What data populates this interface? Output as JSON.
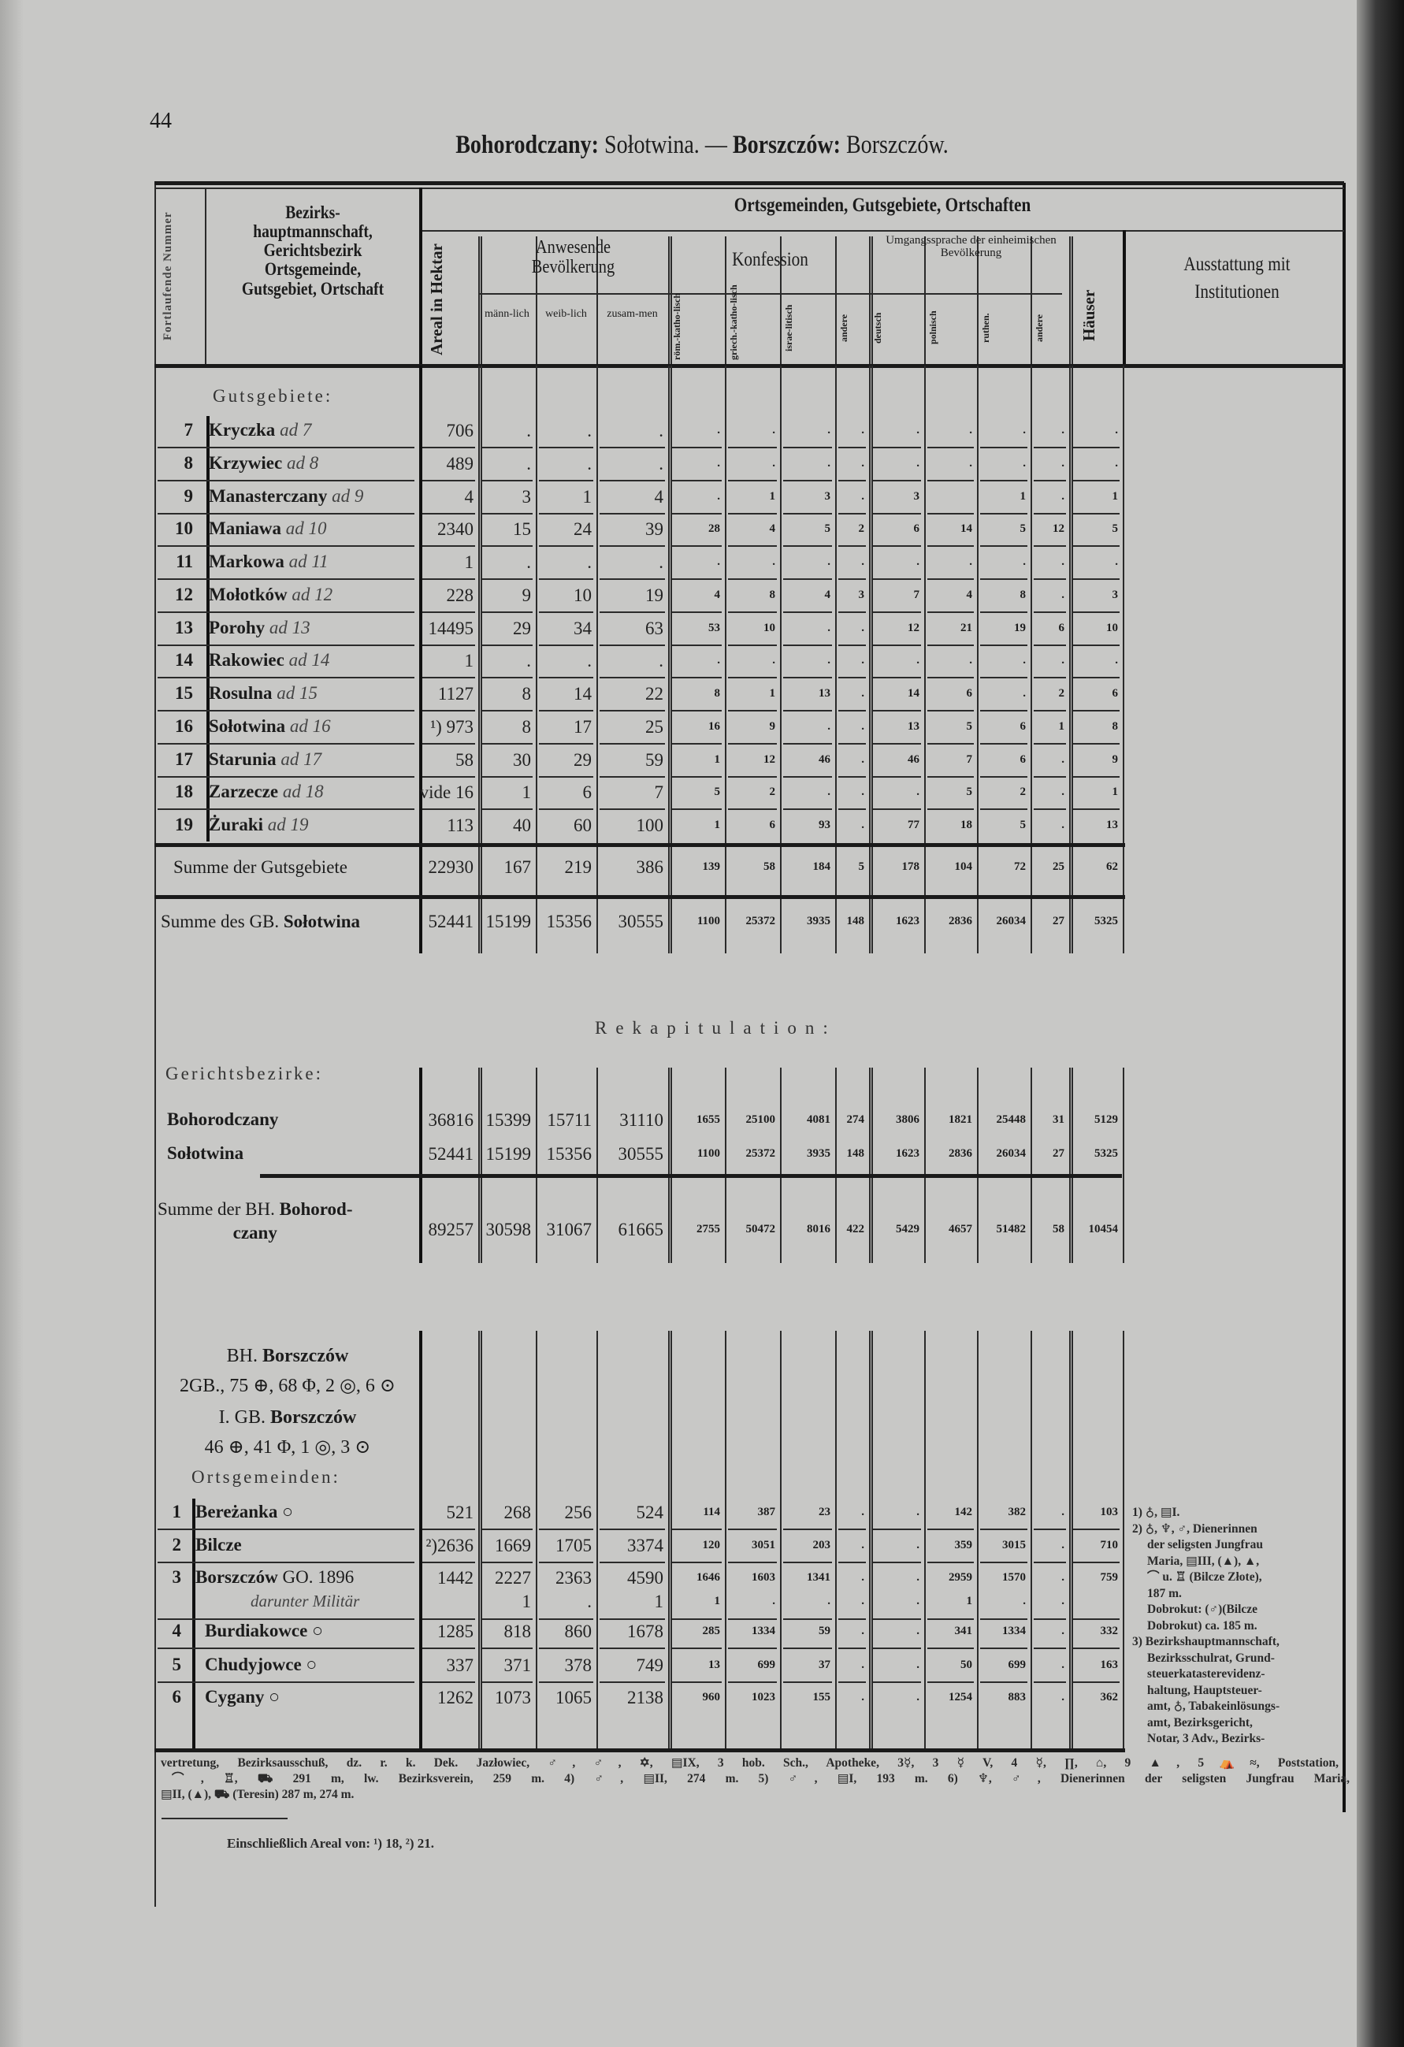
{
  "page_number": "44",
  "title": {
    "part1_bold": "Bohorodczany:",
    "part1": " Sołotwina.",
    "dash": " — ",
    "part2_bold": "Borszczów:",
    "part2": " Borszczów."
  },
  "header": {
    "col_nr": "Fortlaufende Nummer",
    "col_name": "Bezirks-hauptmannschaft, Gerichtsbezirk Ortsgemeinde, Gutsgebiet, Ortschaft",
    "group_main": "Ortsgemeinden, Gutsgebiete, Ortschaften",
    "col_areal": "Areal in Hektar",
    "group_pop": "Anwesende Bevölkerung",
    "pop_cols": [
      "männ-lich",
      "weib-lich",
      "zusam-men"
    ],
    "group_conf": "Konfession",
    "conf_cols": [
      "röm.-katho-lisch",
      "griech.-katho-lisch",
      "israe-litisch",
      "andere"
    ],
    "group_lang": "Umgangssprache der einheimischen Bevölkerung",
    "lang_cols": [
      "deutsch",
      "polnisch",
      "ruthen.",
      "andere"
    ],
    "col_houses": "Häuser",
    "col_equip": "Ausstattung mit Institutionen"
  },
  "gutsgebiete": {
    "heading": "Gutsgebiete:",
    "rows": [
      {
        "nr": "7",
        "name": "Kryczka",
        "ad": "ad 7",
        "values": [
          "706",
          ".",
          ".",
          ".",
          ".",
          ".",
          ".",
          ".",
          ".",
          ".",
          ".",
          ".",
          "."
        ]
      },
      {
        "nr": "8",
        "name": "Krzywiec",
        "ad": "ad 8",
        "values": [
          "489",
          ".",
          ".",
          ".",
          ".",
          ".",
          ".",
          ".",
          ".",
          ".",
          ".",
          ".",
          "."
        ]
      },
      {
        "nr": "9",
        "name": "Manasterczany",
        "ad": "ad 9",
        "values": [
          "4",
          "3",
          "1",
          "4",
          ".",
          "1",
          "3",
          ".",
          "3",
          "",
          "1",
          ".",
          "1"
        ]
      },
      {
        "nr": "10",
        "name": "Maniawa",
        "ad": "ad 10",
        "values": [
          "2340",
          "15",
          "24",
          "39",
          "28",
          "4",
          "5",
          "2",
          "6",
          "14",
          "5",
          "12",
          "5"
        ]
      },
      {
        "nr": "11",
        "name": "Markowa",
        "ad": "ad 11",
        "values": [
          "1",
          ".",
          ".",
          ".",
          ".",
          ".",
          ".",
          ".",
          ".",
          ".",
          ".",
          ".",
          "."
        ]
      },
      {
        "nr": "12",
        "name": "Mołotków",
        "ad": "ad 12",
        "values": [
          "228",
          "9",
          "10",
          "19",
          "4",
          "8",
          "4",
          "3",
          "7",
          "4",
          "8",
          ".",
          "3"
        ]
      },
      {
        "nr": "13",
        "name": "Porohy",
        "ad": "ad 13",
        "values": [
          "14495",
          "29",
          "34",
          "63",
          "53",
          "10",
          ".",
          ".",
          "12",
          "21",
          "19",
          "6",
          "10"
        ]
      },
      {
        "nr": "14",
        "name": "Rakowiec",
        "ad": "ad 14",
        "values": [
          "1",
          ".",
          ".",
          ".",
          ".",
          ".",
          ".",
          ".",
          ".",
          ".",
          ".",
          ".",
          "."
        ]
      },
      {
        "nr": "15",
        "name": "Rosulna",
        "ad": "ad 15",
        "values": [
          "1127",
          "8",
          "14",
          "22",
          "8",
          "1",
          "13",
          ".",
          "14",
          "6",
          ".",
          "2",
          "6"
        ]
      },
      {
        "nr": "16",
        "name": "Sołotwina",
        "ad": "ad 16",
        "values": [
          "¹) 973",
          "8",
          "17",
          "25",
          "16",
          "9",
          ".",
          ".",
          "13",
          "5",
          "6",
          "1",
          "8"
        ]
      },
      {
        "nr": "17",
        "name": "Starunia",
        "ad": "ad 17",
        "values": [
          "58",
          "30",
          "29",
          "59",
          "1",
          "12",
          "46",
          ".",
          "46",
          "7",
          "6",
          ".",
          "9"
        ]
      },
      {
        "nr": "18",
        "name": "Zarzecze",
        "ad": "ad 18",
        "values": [
          "vide 16",
          "1",
          "6",
          "7",
          "5",
          "2",
          ".",
          ".",
          ".",
          "5",
          "2",
          ".",
          "1"
        ]
      },
      {
        "nr": "19",
        "name": "Żuraki",
        "ad": "ad 19",
        "values": [
          "113",
          "40",
          "60",
          "100",
          "1",
          "6",
          "93",
          ".",
          "77",
          "18",
          "5",
          ".",
          "13"
        ]
      }
    ],
    "sum_gutsgebiete": {
      "label": "Summe der Gutsgebiete",
      "values": [
        "22930",
        "167",
        "219",
        "386",
        "139",
        "58",
        "184",
        "5",
        "178",
        "104",
        "72",
        "25",
        "62"
      ]
    },
    "sum_gb": {
      "label_a": "Summe des GB. ",
      "label_b": "Sołotwina",
      "values": [
        "52441",
        "15199",
        "15356",
        "30555",
        "1100",
        "25372",
        "3935",
        "148",
        "1623",
        "2836",
        "26034",
        "27",
        "5325"
      ]
    }
  },
  "rekapitulation": {
    "title": "Rekapitulation:",
    "heading": "Gerichtsbezirke:",
    "rows": [
      {
        "name": "Bohorodczany",
        "values": [
          "36816",
          "15399",
          "15711",
          "31110",
          "1655",
          "25100",
          "4081",
          "274",
          "3806",
          "1821",
          "25448",
          "31",
          "5129"
        ]
      },
      {
        "name": "Sołotwina",
        "values": [
          "52441",
          "15199",
          "15356",
          "30555",
          "1100",
          "25372",
          "3935",
          "148",
          "1623",
          "2836",
          "26034",
          "27",
          "5325"
        ]
      }
    ],
    "sum": {
      "label_a": "Summe der BH. ",
      "label_b": "Bohorod-",
      "label_c": "czany",
      "values": [
        "89257",
        "30598",
        "31067",
        "61665",
        "2755",
        "50472",
        "8016",
        "422",
        "5429",
        "4657",
        "51482",
        "58",
        "10454"
      ]
    }
  },
  "borszczow": {
    "bh_a": "BH. ",
    "bh_b": "Borszczów",
    "bh_counts": "2GB., 75 ⊕, 68 Φ, 2 ◎, 6 ⊙",
    "gb_a": "I. GB. ",
    "gb_b": "Borszczów",
    "gb_counts": "46 ⊕, 41 Φ, 1 ◎, 3 ⊙",
    "heading": "Ortsgemeinden:",
    "rows": [
      {
        "nr": "1",
        "name": "Bereżanka",
        "mark": " ○",
        "values": [
          "521",
          "268",
          "256",
          "524",
          "114",
          "387",
          "23",
          ".",
          ".",
          "142",
          "382",
          ".",
          "103"
        ]
      },
      {
        "nr": "2",
        "name": "Bilcze",
        "mark": "",
        "values": [
          "²)2636",
          "1669",
          "1705",
          "3374",
          "120",
          "3051",
          "203",
          ".",
          ".",
          "359",
          "3015",
          ".",
          "710"
        ]
      },
      {
        "nr": "3",
        "name": "Borszczów",
        "mark": " GO. 1896",
        "values": [
          "1442",
          "2227",
          "2363",
          "4590",
          "1646",
          "1603",
          "1341",
          ".",
          ".",
          "2959",
          "1570",
          ".",
          "759"
        ],
        "sub": {
          "label": "darunter Militär",
          "values": [
            "",
            "1",
            ".",
            "1",
            "1",
            ".",
            ".",
            ".",
            ".",
            "1",
            ".",
            ".",
            ""
          ]
        }
      },
      {
        "nr": "4",
        "name": "Burdiakowce",
        "mark": " ○",
        "values": [
          "1285",
          "818",
          "860",
          "1678",
          "285",
          "1334",
          "59",
          ".",
          ".",
          "341",
          "1334",
          ".",
          "332"
        ]
      },
      {
        "nr": "5",
        "name": "Chudyjowce",
        "mark": " ○",
        "values": [
          "337",
          "371",
          "378",
          "749",
          "13",
          "699",
          "37",
          ".",
          ".",
          "50",
          "699",
          ".",
          "163"
        ]
      },
      {
        "nr": "6",
        "name": "Cygany",
        "mark": " ○",
        "values": [
          "1262",
          "1073",
          "1065",
          "2138",
          "960",
          "1023",
          "155",
          ".",
          ".",
          "1254",
          "883",
          ".",
          "362"
        ]
      }
    ],
    "equipment_notes": [
      "1) ♁, ▤I.",
      "2) ♁, ♆, ♂, Dienerinnen",
      "der seligsten Jungfrau",
      "Maria, ▤III, (▲), ▲,",
      "⌒ u. ♖ (Bilcze Złote),",
      "187 m.",
      "Dobrokut: (♂)(Bilcze",
      "Dobrokut) ca. 185 m.",
      "3) Bezirkshauptmannschaft,",
      "Bezirksschulrat, Grund-",
      "steuerkatasterevidenz-",
      "haltung, Hauptsteuer-",
      "amt, ♁, Tabakeinlösungs-",
      "amt, Bezirksgericht,",
      "Notar, 3 Adv., Bezirks-"
    ],
    "footer_lines": [
      "vertretung, Bezirksausschuß, dz. r. k. Dek. Jazłowiec, ♂, ♂, ✡, ▤IX, 3 hob. Sch., Apotheke, 3☿, 3 ☿ V, 4 ☿, ∏, ⌂, 9 ▲, 5⛺≈, Poststation,",
      "⌒, ♖, ⛟ 291 m, lw. Bezirksverein, 259 m.        4) ♂, ▤II, 274 m.        5) ♂, ▤I, 193 m.        6) ♆, ♂, Dienerinnen der seligsten Jungfrau Maria,",
      "▤II, (▲), ⛟ (Teresin) 287 m, 274 m."
    ],
    "areal_note": "Einschließlich Areal von: ¹) 18, ²) 21."
  }
}
